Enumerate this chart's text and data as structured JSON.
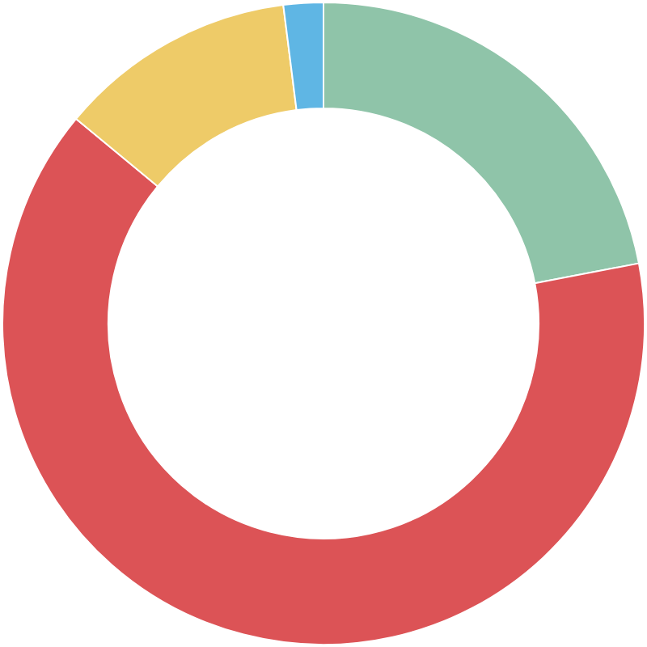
{
  "chart_data": {
    "type": "donut",
    "categories": [
      null,
      null,
      null,
      null
    ],
    "values": [
      22,
      64,
      12,
      2
    ],
    "colors": [
      "#8fc4a9",
      "#dc5356",
      "#eecb68",
      "#5fb6e4"
    ]
  }
}
